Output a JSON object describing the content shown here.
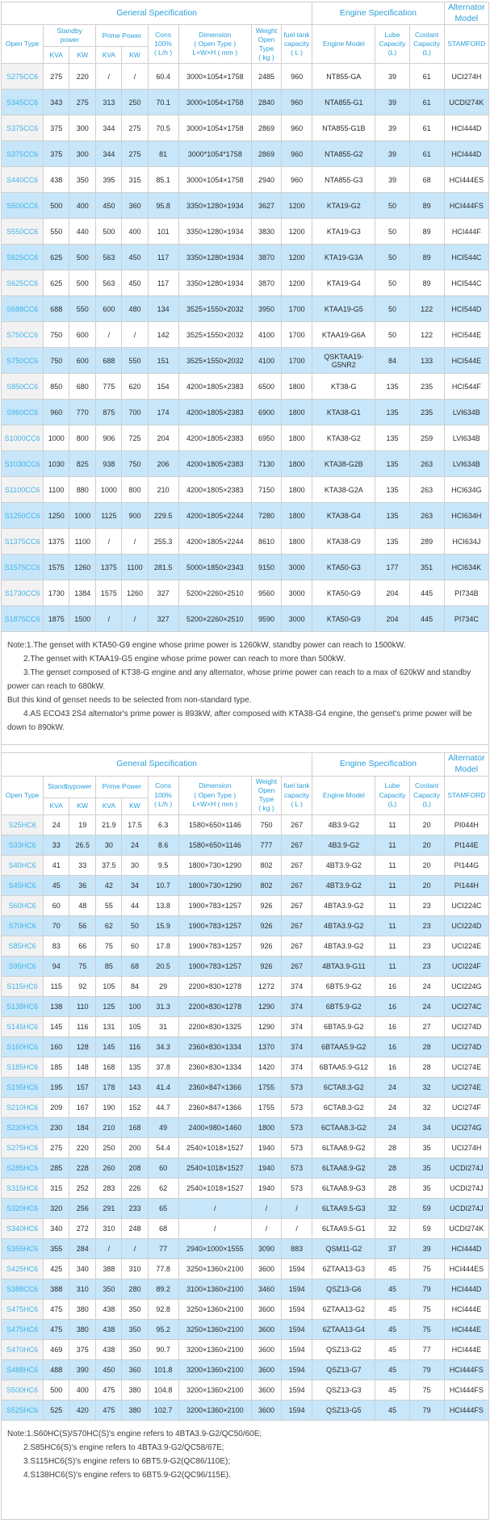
{
  "colors": {
    "header_text": "#2b9fd9",
    "model_link": "#3fb3e8",
    "row_stripe": "#c7e6f9",
    "model_col_bg": "#f2f2f2",
    "border": "#cfcfcf"
  },
  "tables": [
    {
      "name": "cc6-series-spec-table",
      "header": {
        "general_spec": "General Specification",
        "engine_spec": "Engine Specification",
        "alternator_model": [
          "Alternator",
          "Model"
        ],
        "open_type": "Open Type",
        "standby_power": [
          "Standby",
          "power"
        ],
        "prime_power": "Prime Power",
        "kva": "KVA",
        "kw": "KW",
        "cons": [
          "Cons",
          "100%",
          "( L/h )"
        ],
        "dimension": [
          "Dimension",
          "( Open Type )",
          "L×W×H ( mm )"
        ],
        "weight": [
          "Weight",
          "Open Type",
          "( kg )"
        ],
        "fuel": [
          "fuel tank",
          "capacity",
          "( L )"
        ],
        "engine_model": "Engine Model",
        "lube": [
          "Lube",
          "Capacity",
          "(L)"
        ],
        "coolant": [
          "Coolant",
          "Capacity",
          "(L)"
        ],
        "stamford": "STAMFORD"
      },
      "rows": [
        [
          "S275CC6",
          "275",
          "220",
          "/",
          "/",
          "60.4",
          "3000×1054×1758",
          "2485",
          "960",
          "NT855-GA",
          "39",
          "61",
          "UCI274H"
        ],
        [
          "S345CC6",
          "343",
          "275",
          "313",
          "250",
          "70.1",
          "3000×1054×1758",
          "2840",
          "960",
          "NTA855-G1",
          "39",
          "61",
          "UCDI274K"
        ],
        [
          "S375CC6",
          "375",
          "300",
          "344",
          "275",
          "70.5",
          "3000×1054×1758",
          "2869",
          "960",
          "NTA855-G1B",
          "39",
          "61",
          "HCI444D"
        ],
        [
          "S375CC6",
          "375",
          "300",
          "344",
          "275",
          "81",
          "3000*1054*1758",
          "2869",
          "960",
          "NTA855-G2",
          "39",
          "61",
          "HCI444D"
        ],
        [
          "S440CC6",
          "438",
          "350",
          "395",
          "315",
          "85.1",
          "3000×1054×1758",
          "2940",
          "960",
          "NTA855-G3",
          "39",
          "68",
          "HCI444ES"
        ],
        [
          "S500CC6",
          "500",
          "400",
          "450",
          "360",
          "95.8",
          "3350×1280×1934",
          "3627",
          "1200",
          "KTA19-G2",
          "50",
          "89",
          "HCI444FS"
        ],
        [
          "S550CC6",
          "550",
          "440",
          "500",
          "400",
          "101",
          "3350×1280×1934",
          "3830",
          "1200",
          "KTA19-G3",
          "50",
          "89",
          "HCI444F"
        ],
        [
          "S625CC6",
          "625",
          "500",
          "563",
          "450",
          "117",
          "3350×1280×1934",
          "3870",
          "1200",
          "KTA19-G3A",
          "50",
          "89",
          "HCI544C"
        ],
        [
          "S625CC6",
          "625",
          "500",
          "563",
          "450",
          "117",
          "3350×1280×1934",
          "3870",
          "1200",
          "KTA19-G4",
          "50",
          "89",
          "HCI544C"
        ],
        [
          "S688CC6",
          "688",
          "550",
          "600",
          "480",
          "134",
          "3525×1550×2032",
          "3950",
          "1700",
          "KTAA19-G5",
          "50",
          "122",
          "HCI544D"
        ],
        [
          "S750CC6",
          "750",
          "600",
          "/",
          "/",
          "142",
          "3525×1550×2032",
          "4100",
          "1700",
          "KTAA19-G6A",
          "50",
          "122",
          "HCI544E"
        ],
        [
          "S750CC6",
          "750",
          "600",
          "688",
          "550",
          "151",
          "3525×1550×2032",
          "4100",
          "1700",
          "QSKTAA19-G5NR2",
          "84",
          "133",
          "HCI544E"
        ],
        [
          "S850CC6",
          "850",
          "680",
          "775",
          "620",
          "154",
          "4200×1805×2383",
          "6500",
          "1800",
          "KT38-G",
          "135",
          "235",
          "HCI544F"
        ],
        [
          "S960CC6",
          "960",
          "770",
          "875",
          "700",
          "174",
          "4200×1805×2383",
          "6900",
          "1800",
          "KTA38-G1",
          "135",
          "235",
          "LVI634B"
        ],
        [
          "S1000CC6",
          "1000",
          "800",
          "906",
          "725",
          "204",
          "4200×1805×2383",
          "6950",
          "1800",
          "KTA38-G2",
          "135",
          "259",
          "LVI634B"
        ],
        [
          "S1030CC6",
          "1030",
          "825",
          "938",
          "750",
          "206",
          "4200×1805×2383",
          "7130",
          "1800",
          "KTA38-G2B",
          "135",
          "263",
          "LVI634B"
        ],
        [
          "S1100CC6",
          "1100",
          "880",
          "1000",
          "800",
          "210",
          "4200×1805×2383",
          "7150",
          "1800",
          "KTA38-G2A",
          "135",
          "263",
          "HCI634G"
        ],
        [
          "S1250CC6",
          "1250",
          "1000",
          "1125",
          "900",
          "229.5",
          "4200×1805×2244",
          "7280",
          "1800",
          "KTA38-G4",
          "135",
          "263",
          "HCI634H"
        ],
        [
          "S1375CC6",
          "1375",
          "1100",
          "/",
          "/",
          "255.3",
          "4200×1805×2244",
          "8610",
          "1800",
          "KTA38-G9",
          "135",
          "289",
          "HCI634J"
        ],
        [
          "S1575CC6",
          "1575",
          "1260",
          "1375",
          "1100",
          "281.5",
          "5000×1850×2343",
          "9150",
          "3000",
          "KTA50-G3",
          "177",
          "351",
          "HCI634K"
        ],
        [
          "S1730CC6",
          "1730",
          "1384",
          "1575",
          "1260",
          "327",
          "5200×2260×2510",
          "9560",
          "3000",
          "KTA50-G9",
          "204",
          "445",
          "PI734B"
        ],
        [
          "S1875CC6",
          "1875",
          "1500",
          "/",
          "/",
          "327",
          "5200×2260×2510",
          "9590",
          "3000",
          "KTA50-G9",
          "204",
          "445",
          "PI734C"
        ]
      ],
      "notes": [
        {
          "text": "Note:1.The genset with KTA50-G9 engine whose prime power is 1260kW, standby power can reach to 1500kW.",
          "indent": false
        },
        {
          "text": "2.The genset with KTAA19-G5 engine whose prime power can reach to more than 500kW.",
          "indent": true
        },
        {
          "text": "3.The genset composed of KT38-G engine and any alternator, whose prime power can reach to a max of 620kW and standby power can reach to 680kW.",
          "indent": true
        },
        {
          "text": "But this kind of genset needs to be selected from non-standard type.",
          "indent": false
        },
        {
          "text": "4.AS ECO43 2S4 alternator's prime power is 893kW, after composed with KTA38-G4 engine, the genset's prime power will be down to 890kW.",
          "indent": true
        }
      ]
    },
    {
      "name": "hc6-series-spec-table",
      "header": {
        "general_spec": "General Specification",
        "engine_spec": "Engine Specification",
        "alternator_model": [
          "Alternator",
          "Model"
        ],
        "open_type": "Open Type",
        "standby_power": [
          "Standbypower"
        ],
        "prime_power": "Prime Power",
        "kva": "KVA",
        "kw": "KW",
        "cons": [
          "Cons",
          "100%",
          "( L/h )"
        ],
        "dimension": [
          "Dimension",
          "( Open Type )",
          "L×W×H ( mm )"
        ],
        "weight": [
          "Weight",
          "Open Type",
          "( kg )"
        ],
        "fuel": [
          "fuel tank",
          "capacity",
          "( L )"
        ],
        "engine_model": "Engine Model",
        "lube": [
          "Lube",
          "Capacity",
          "(L)"
        ],
        "coolant": [
          "Coolant",
          "Capacity",
          "(L)"
        ],
        "stamford": "STAMFORD"
      },
      "rows": [
        [
          "S25HC6",
          "24",
          "19",
          "21.9",
          "17.5",
          "6.3",
          "1580×650×1146",
          "750",
          "267",
          "4B3.9-G2",
          "11",
          "20",
          "PI044H"
        ],
        [
          "S33HC6",
          "33",
          "26.5",
          "30",
          "24",
          "8.6",
          "1580×650×1146",
          "777",
          "267",
          "4B3.9-G2",
          "11",
          "20",
          "PI144E"
        ],
        [
          "S40HC6",
          "41",
          "33",
          "37.5",
          "30",
          "9.5",
          "1800×730×1290",
          "802",
          "267",
          "4BT3.9-G2",
          "11",
          "20",
          "PI144G"
        ],
        [
          "S45HC6",
          "45",
          "36",
          "42",
          "34",
          "10.7",
          "1800×730×1290",
          "802",
          "267",
          "4BT3.9-G2",
          "11",
          "20",
          "PI144H"
        ],
        [
          "S60HC6",
          "60",
          "48",
          "55",
          "44",
          "13.8",
          "1900×783×1257",
          "926",
          "267",
          "4BTA3.9-G2",
          "11",
          "23",
          "UCI224C"
        ],
        [
          "S70HC6",
          "70",
          "56",
          "62",
          "50",
          "15.9",
          "1900×783×1257",
          "926",
          "267",
          "4BTA3.9-G2",
          "11",
          "23",
          "UCI224D"
        ],
        [
          "S85HC6",
          "83",
          "66",
          "75",
          "60",
          "17.8",
          "1900×783×1257",
          "926",
          "267",
          "4BTA3.9-G2",
          "11",
          "23",
          "UCI224E"
        ],
        [
          "S95HC6",
          "94",
          "75",
          "85",
          "68",
          "20.5",
          "1900×783×1257",
          "926",
          "267",
          "4BTA3.9-G11",
          "11",
          "23",
          "UCI224F"
        ],
        [
          "S115HC6",
          "115",
          "92",
          "105",
          "84",
          "29",
          "2200×830×1278",
          "1272",
          "374",
          "6BT5.9-G2",
          "16",
          "24",
          "UCI224G"
        ],
        [
          "S138HC6",
          "138",
          "110",
          "125",
          "100",
          "31.3",
          "2200×830×1278",
          "1290",
          "374",
          "6BT5.9-G2",
          "16",
          "24",
          "UCI274C"
        ],
        [
          "S145HC6",
          "145",
          "116",
          "131",
          "105",
          "31",
          "2200×830×1325",
          "1290",
          "374",
          "6BTA5.9-G2",
          "16",
          "27",
          "UCI274D"
        ],
        [
          "S160HC6",
          "160",
          "128",
          "145",
          "116",
          "34.3",
          "2360×830×1334",
          "1370",
          "374",
          "6BTAA5.9-G2",
          "16",
          "28",
          "UCI274D"
        ],
        [
          "S185HC6",
          "185",
          "148",
          "168",
          "135",
          "37.8",
          "2360×830×1334",
          "1420",
          "374",
          "6BTAA5.9-G12",
          "16",
          "28",
          "UCI274E"
        ],
        [
          "S195HC6",
          "195",
          "157",
          "178",
          "143",
          "41.4",
          "2360×847×1366",
          "1755",
          "573",
          "6CTA8.3-G2",
          "24",
          "32",
          "UCI274E"
        ],
        [
          "S210HC6",
          "209",
          "167",
          "190",
          "152",
          "44.7",
          "2360×847×1366",
          "1755",
          "573",
          "6CTA8.3-G2",
          "24",
          "32",
          "UCI274F"
        ],
        [
          "S230HC6",
          "230",
          "184",
          "210",
          "168",
          "49",
          "2400×980×1460",
          "1800",
          "573",
          "6CTAA8.3-G2",
          "24",
          "34",
          "UCI274G"
        ],
        [
          "S275HC6",
          "275",
          "220",
          "250",
          "200",
          "54.4",
          "2540×1018×1527",
          "1940",
          "573",
          "6LTAA8.9-G2",
          "28",
          "35",
          "UCI274H"
        ],
        [
          "S285HC6",
          "285",
          "228",
          "260",
          "208",
          "60",
          "2540×1018×1527",
          "1940",
          "573",
          "6LTAA8.9-G2",
          "28",
          "35",
          "UCDI274J"
        ],
        [
          "S315HC6",
          "315",
          "252",
          "283",
          "226",
          "62",
          "2540×1018×1527",
          "1940",
          "573",
          "6LTAA8.9-G3",
          "28",
          "35",
          "UCDI274J"
        ],
        [
          "S320HC6",
          "320",
          "256",
          "291",
          "233",
          "65",
          "/",
          "/",
          "/",
          "6LTAA9.5-G3",
          "32",
          "59",
          "UCDI274J"
        ],
        [
          "S340HC6",
          "340",
          "272",
          "310",
          "248",
          "68",
          "/",
          "/",
          "/",
          "6LTAA9.5-G1",
          "32",
          "59",
          "UCDI274K"
        ],
        [
          "S355HC6",
          "355",
          "284",
          "/",
          "/",
          "77",
          "2940×1000×1555",
          "3090",
          "883",
          "QSM11-G2",
          "37",
          "39",
          "HCI444D"
        ],
        [
          "S425HC6",
          "425",
          "340",
          "388",
          "310",
          "77.8",
          "3250×1360×2100",
          "3600",
          "1594",
          "6ZTAA13-G3",
          "45",
          "75",
          "HCI444ES"
        ],
        [
          "S388CC6",
          "388",
          "310",
          "350",
          "280",
          "89.2",
          "3100×1360×2100",
          "3460",
          "1594",
          "QSZ13-G6",
          "45",
          "79",
          "HCI444D"
        ],
        [
          "S475HC6",
          "475",
          "380",
          "438",
          "350",
          "92.8",
          "3250×1360×2100",
          "3600",
          "1594",
          "6ZTAA13-G2",
          "45",
          "75",
          "HCI444E"
        ],
        [
          "S475HC6",
          "475",
          "380",
          "438",
          "350",
          "95.2",
          "3250×1360×2100",
          "3600",
          "1594",
          "6ZTAA13-G4",
          "45",
          "75",
          "HCI444E"
        ],
        [
          "S470HC6",
          "469",
          "375",
          "438",
          "350",
          "90.7",
          "3200×1360×2100",
          "3600",
          "1594",
          "QSZ13-G2",
          "45",
          "77",
          "HCI444E"
        ],
        [
          "S488HC6",
          "488",
          "390",
          "450",
          "360",
          "101.8",
          "3200×1360×2100",
          "3600",
          "1594",
          "QSZ13-G7",
          "45",
          "79",
          "HCI444FS"
        ],
        [
          "S500HC6",
          "500",
          "400",
          "475",
          "380",
          "104.8",
          "3200×1360×2100",
          "3600",
          "1594",
          "QSZ13-G3",
          "45",
          "75",
          "HCI444FS"
        ],
        [
          "S525HC6",
          "525",
          "420",
          "475",
          "380",
          "102.7",
          "3200×1360×2100",
          "3600",
          "1594",
          "QSZ13-G5",
          "45",
          "79",
          "HCI444FS"
        ]
      ],
      "notes": [
        {
          "text": "Note:1.S60HC(S)/S70HC(S)'s engine refers to 4BTA3.9-G2/QC50/60E;",
          "indent": false
        },
        {
          "text": "2.S85HC6(S)'s engine refers to 4BTA3.9-G2/QC58/67E;",
          "indent": true
        },
        {
          "text": "3.S115HC6(S)'s engine refers to 6BT5.9-G2(QC86/110E);",
          "indent": true
        },
        {
          "text": "4.S138HC6(S)'s engine refers to 6BT5.9-G2(QC96/115E).",
          "indent": true
        }
      ]
    }
  ]
}
